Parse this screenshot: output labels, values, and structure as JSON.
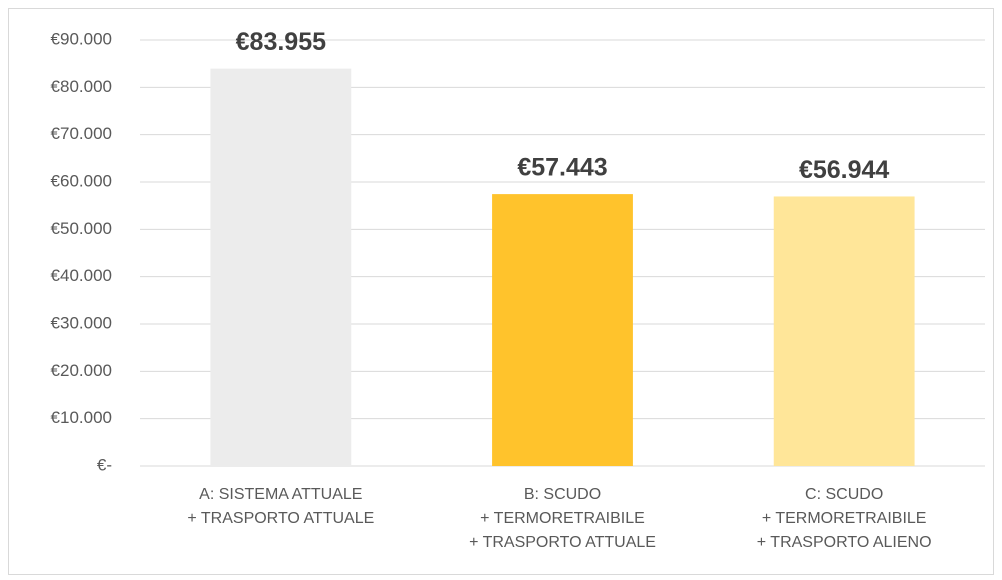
{
  "chart_data": {
    "type": "bar",
    "categories": [
      [
        "A: SISTEMA ATTUALE",
        "+ TRASPORTO ATTUALE"
      ],
      [
        "B: SCUDO",
        "+ TERMORETRAIBILE",
        "+ TRASPORTO ATTUALE"
      ],
      [
        "C: SCUDO",
        "+ TERMORETRAIBILE",
        "+ TRASPORTO ALIENO"
      ]
    ],
    "values": [
      83955,
      57443,
      56944
    ],
    "value_labels": [
      "€83.955",
      "€57.443",
      "€56.944"
    ],
    "colors": [
      "#ececec",
      "#ffc32c",
      "#ffe699"
    ],
    "ylim": [
      0,
      90000
    ],
    "yticks": [
      {
        "value": 0,
        "label": "€-"
      },
      {
        "value": 10000,
        "label": "€10.000"
      },
      {
        "value": 20000,
        "label": "€20.000"
      },
      {
        "value": 30000,
        "label": "€30.000"
      },
      {
        "value": 40000,
        "label": "€40.000"
      },
      {
        "value": 50000,
        "label": "€50.000"
      },
      {
        "value": 60000,
        "label": "€60.000"
      },
      {
        "value": 70000,
        "label": "€70.000"
      },
      {
        "value": 80000,
        "label": "€80.000"
      },
      {
        "value": 90000,
        "label": "€90.000"
      }
    ],
    "grid": true
  }
}
